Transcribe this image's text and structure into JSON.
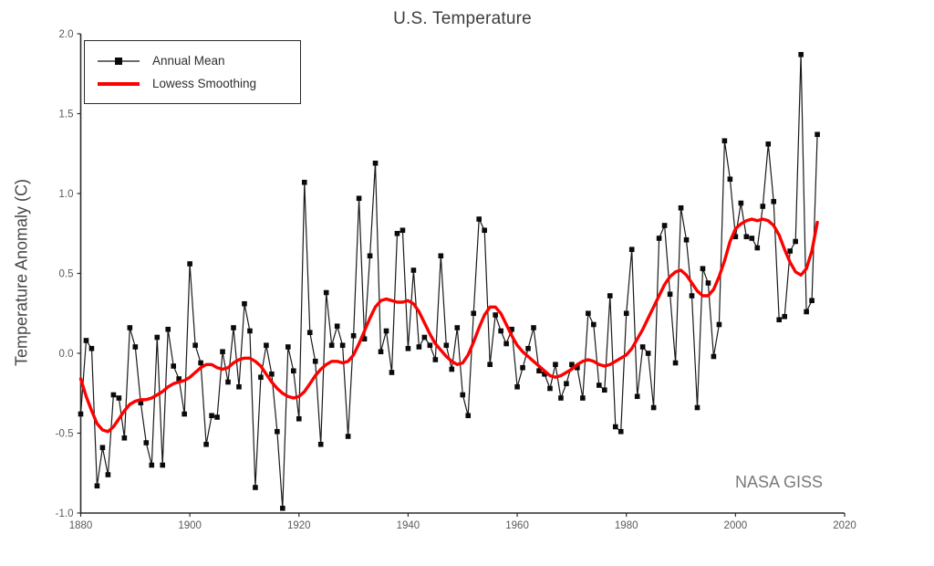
{
  "title": "U.S. Temperature",
  "y_axis_label": "Temperature Anomaly (C)",
  "watermark": "NASA GISS",
  "legend": [
    {
      "label": "Annual Mean",
      "color": "#0a0a0a",
      "type": "line-marker"
    },
    {
      "label": "Lowess Smoothing",
      "color": "#ff0000",
      "type": "line"
    }
  ],
  "colors": {
    "annual_line": "#1a1a1a",
    "lowess_line": "#ff0000",
    "axis": "#2b2b2b",
    "tick_text": "#595959",
    "title_text": "#3d3d3d",
    "watermark_text": "#7a7a7a"
  },
  "chart_data": {
    "type": "line",
    "title": "U.S. Temperature",
    "xlabel": "",
    "ylabel": "Temperature Anomaly (C)",
    "xlim": [
      1880,
      2020
    ],
    "ylim": [
      -1.0,
      2.0
    ],
    "x_ticks": [
      1880,
      1900,
      1920,
      1940,
      1960,
      1980,
      2000,
      2020
    ],
    "y_ticks": [
      -1.0,
      -0.5,
      0.0,
      0.5,
      1.0,
      1.5,
      2.0
    ],
    "grid": false,
    "legend_position": "top-left",
    "annotation": "NASA GISS",
    "x": [
      1880,
      1881,
      1882,
      1883,
      1884,
      1885,
      1886,
      1887,
      1888,
      1889,
      1890,
      1891,
      1892,
      1893,
      1894,
      1895,
      1896,
      1897,
      1898,
      1899,
      1900,
      1901,
      1902,
      1903,
      1904,
      1905,
      1906,
      1907,
      1908,
      1909,
      1910,
      1911,
      1912,
      1913,
      1914,
      1915,
      1916,
      1917,
      1918,
      1919,
      1920,
      1921,
      1922,
      1923,
      1924,
      1925,
      1926,
      1927,
      1928,
      1929,
      1930,
      1931,
      1932,
      1933,
      1934,
      1935,
      1936,
      1937,
      1938,
      1939,
      1940,
      1941,
      1942,
      1943,
      1944,
      1945,
      1946,
      1947,
      1948,
      1949,
      1950,
      1951,
      1952,
      1953,
      1954,
      1955,
      1956,
      1957,
      1958,
      1959,
      1960,
      1961,
      1962,
      1963,
      1964,
      1965,
      1966,
      1967,
      1968,
      1969,
      1970,
      1971,
      1972,
      1973,
      1974,
      1975,
      1976,
      1977,
      1978,
      1979,
      1980,
      1981,
      1982,
      1983,
      1984,
      1985,
      1986,
      1987,
      1988,
      1989,
      1990,
      1991,
      1992,
      1993,
      1994,
      1995,
      1996,
      1997,
      1998,
      1999,
      2000,
      2001,
      2002,
      2003,
      2004,
      2005,
      2006,
      2007,
      2008,
      2009,
      2010,
      2011,
      2012,
      2013,
      2014,
      2015
    ],
    "series": [
      {
        "name": "Annual Mean",
        "color": "#1a1a1a",
        "marker": "square",
        "values": [
          -0.38,
          0.08,
          0.03,
          -0.83,
          -0.59,
          -0.76,
          -0.26,
          -0.28,
          -0.53,
          0.16,
          0.04,
          -0.31,
          -0.56,
          -0.7,
          0.1,
          -0.7,
          0.15,
          -0.08,
          -0.16,
          -0.38,
          0.56,
          0.05,
          -0.06,
          -0.57,
          -0.39,
          -0.4,
          0.01,
          -0.18,
          0.16,
          -0.21,
          0.31,
          0.14,
          -0.84,
          -0.15,
          0.05,
          -0.13,
          -0.49,
          -0.97,
          0.04,
          -0.11,
          -0.41,
          1.07,
          0.13,
          -0.05,
          -0.57,
          0.38,
          0.05,
          0.17,
          0.05,
          -0.52,
          0.11,
          0.97,
          0.09,
          0.61,
          1.19,
          0.01,
          0.14,
          -0.12,
          0.75,
          0.77,
          0.03,
          0.52,
          0.04,
          0.1,
          0.05,
          -0.04,
          0.61,
          0.05,
          -0.1,
          0.16,
          -0.26,
          -0.39,
          0.25,
          0.84,
          0.77,
          -0.07,
          0.24,
          0.14,
          0.06,
          0.15,
          -0.21,
          -0.09,
          0.03,
          0.16,
          -0.11,
          -0.13,
          -0.22,
          -0.07,
          -0.28,
          -0.19,
          -0.07,
          -0.09,
          -0.28,
          0.25,
          0.18,
          -0.2,
          -0.23,
          0.36,
          -0.46,
          -0.49,
          0.25,
          0.65,
          -0.27,
          0.04,
          0.0,
          -0.34,
          0.72,
          0.8,
          0.37,
          -0.06,
          0.91,
          0.71,
          0.36,
          -0.34,
          0.53,
          0.44,
          -0.02,
          0.18,
          1.33,
          1.09,
          0.73,
          0.94,
          0.73,
          0.72,
          0.66,
          0.92,
          1.31,
          0.95,
          0.21,
          0.23,
          0.64,
          0.7,
          1.87,
          0.26,
          0.33,
          1.37
        ]
      },
      {
        "name": "Lowess Smoothing",
        "color": "#ff0000",
        "marker": "none",
        "values": [
          -0.16,
          -0.27,
          -0.36,
          -0.44,
          -0.48,
          -0.49,
          -0.46,
          -0.41,
          -0.36,
          -0.32,
          -0.3,
          -0.29,
          -0.29,
          -0.28,
          -0.26,
          -0.24,
          -0.21,
          -0.19,
          -0.18,
          -0.17,
          -0.15,
          -0.12,
          -0.09,
          -0.07,
          -0.07,
          -0.09,
          -0.1,
          -0.09,
          -0.06,
          -0.04,
          -0.03,
          -0.03,
          -0.05,
          -0.08,
          -0.13,
          -0.18,
          -0.22,
          -0.25,
          -0.27,
          -0.28,
          -0.27,
          -0.24,
          -0.19,
          -0.14,
          -0.1,
          -0.07,
          -0.05,
          -0.05,
          -0.06,
          -0.05,
          -0.01,
          0.06,
          0.14,
          0.22,
          0.29,
          0.33,
          0.34,
          0.33,
          0.32,
          0.32,
          0.33,
          0.31,
          0.26,
          0.19,
          0.12,
          0.06,
          0.02,
          -0.02,
          -0.05,
          -0.07,
          -0.06,
          -0.01,
          0.07,
          0.16,
          0.24,
          0.29,
          0.29,
          0.25,
          0.18,
          0.11,
          0.05,
          0.01,
          -0.02,
          -0.05,
          -0.08,
          -0.11,
          -0.14,
          -0.15,
          -0.14,
          -0.12,
          -0.1,
          -0.07,
          -0.05,
          -0.04,
          -0.05,
          -0.07,
          -0.08,
          -0.07,
          -0.05,
          -0.03,
          -0.01,
          0.03,
          0.09,
          0.15,
          0.22,
          0.29,
          0.36,
          0.43,
          0.48,
          0.51,
          0.52,
          0.49,
          0.44,
          0.39,
          0.36,
          0.36,
          0.4,
          0.48,
          0.58,
          0.7,
          0.78,
          0.81,
          0.83,
          0.84,
          0.83,
          0.84,
          0.83,
          0.8,
          0.74,
          0.65,
          0.57,
          0.51,
          0.49,
          0.53,
          0.64,
          0.82
        ]
      }
    ]
  }
}
